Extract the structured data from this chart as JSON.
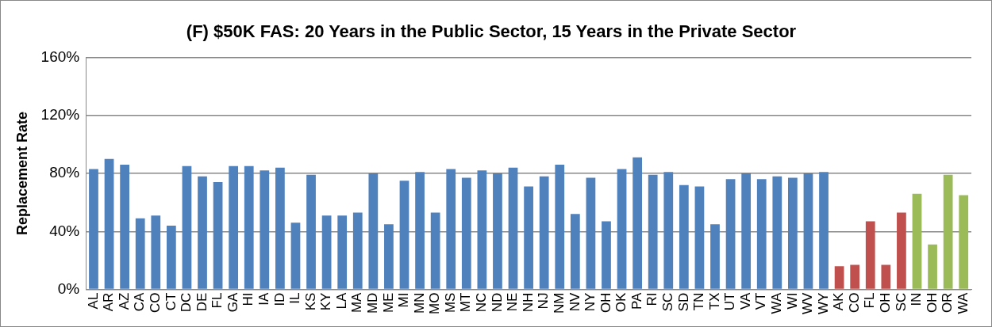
{
  "chart_data": {
    "type": "bar",
    "title": "(F) $50K FAS: 20 Years in the Public Sector, 15 Years in the Private Sector",
    "ylabel": "Replacement Rate",
    "categories": [
      "AL",
      "AR",
      "AZ",
      "CA",
      "CO",
      "CT",
      "DC",
      "DE",
      "FL",
      "GA",
      "HI",
      "IA",
      "ID",
      "IL",
      "KS",
      "KY",
      "LA",
      "MA",
      "MD",
      "ME",
      "MI",
      "MN",
      "MO",
      "MS",
      "MT",
      "NC",
      "ND",
      "NE",
      "NH",
      "NJ",
      "NM",
      "NV",
      "NY",
      "OH",
      "OK",
      "PA",
      "RI",
      "SC",
      "SD",
      "TN",
      "TX",
      "UT",
      "VA",
      "VT",
      "WA",
      "WI",
      "WV",
      "WY",
      "AK",
      "CO",
      "FL",
      "OH",
      "SC",
      "IN",
      "OH",
      "OR",
      "WA"
    ],
    "values": [
      83,
      90,
      86,
      49,
      51,
      44,
      85,
      78,
      74,
      85,
      85,
      82,
      84,
      46,
      79,
      51,
      51,
      53,
      80,
      45,
      75,
      81,
      53,
      83,
      77,
      82,
      80,
      84,
      71,
      78,
      86,
      52,
      77,
      47,
      83,
      91,
      79,
      81,
      72,
      71,
      45,
      76,
      80,
      76,
      78,
      77,
      80,
      81,
      16,
      17,
      47,
      17,
      53,
      66,
      31,
      79,
      65
    ],
    "colors": [
      "#4f81bd",
      "#4f81bd",
      "#4f81bd",
      "#4f81bd",
      "#4f81bd",
      "#4f81bd",
      "#4f81bd",
      "#4f81bd",
      "#4f81bd",
      "#4f81bd",
      "#4f81bd",
      "#4f81bd",
      "#4f81bd",
      "#4f81bd",
      "#4f81bd",
      "#4f81bd",
      "#4f81bd",
      "#4f81bd",
      "#4f81bd",
      "#4f81bd",
      "#4f81bd",
      "#4f81bd",
      "#4f81bd",
      "#4f81bd",
      "#4f81bd",
      "#4f81bd",
      "#4f81bd",
      "#4f81bd",
      "#4f81bd",
      "#4f81bd",
      "#4f81bd",
      "#4f81bd",
      "#4f81bd",
      "#4f81bd",
      "#4f81bd",
      "#4f81bd",
      "#4f81bd",
      "#4f81bd",
      "#4f81bd",
      "#4f81bd",
      "#4f81bd",
      "#4f81bd",
      "#4f81bd",
      "#4f81bd",
      "#4f81bd",
      "#4f81bd",
      "#4f81bd",
      "#4f81bd",
      "#c0504d",
      "#c0504d",
      "#c0504d",
      "#c0504d",
      "#c0504d",
      "#9bbb59",
      "#9bbb59",
      "#9bbb59",
      "#9bbb59"
    ],
    "ylim": [
      0,
      160
    ],
    "yticks": [
      {
        "value": 0,
        "label": "0%"
      },
      {
        "value": 40,
        "label": "40%"
      },
      {
        "value": 80,
        "label": "80%"
      },
      {
        "value": 120,
        "label": "120%"
      },
      {
        "value": 160,
        "label": "160%"
      }
    ],
    "grid": "y",
    "legend": false
  }
}
